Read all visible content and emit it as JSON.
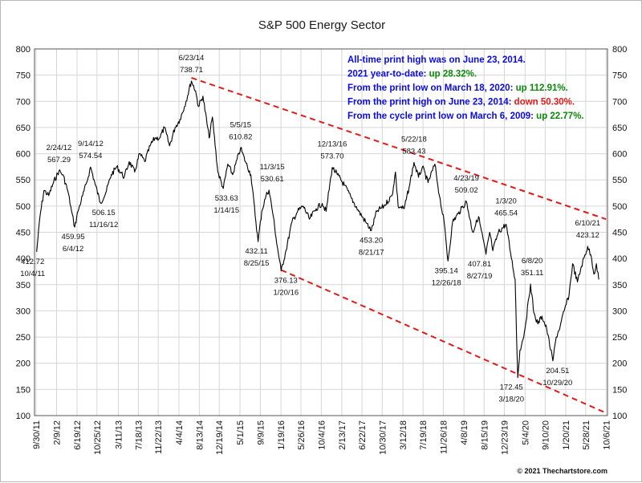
{
  "chart_data": {
    "type": "line",
    "title": "S&P 500 Energy Sector",
    "ylim": [
      100,
      800
    ],
    "yticks": [
      100,
      150,
      200,
      250,
      300,
      350,
      400,
      450,
      500,
      550,
      600,
      650,
      700,
      750,
      800
    ],
    "xdomain": [
      "2011-09-20",
      "2021-10-15"
    ],
    "xticks": [
      "9/30/11",
      "2/9/12",
      "6/19/12",
      "10/25/12",
      "3/11/13",
      "7/18/13",
      "11/22/13",
      "4/4/14",
      "8/13/14",
      "12/19/14",
      "5/1/15",
      "9/9/15",
      "1/19/16",
      "5/26/16",
      "10/4/16",
      "2/13/17",
      "6/22/17",
      "10/30/17",
      "3/12/18",
      "7/19/18",
      "11/26/18",
      "4/8/19",
      "8/15/19",
      "12/23/19",
      "5/4/20",
      "9/10/20",
      "1/20/21",
      "5/28/21",
      "10/6/21"
    ],
    "grid": true,
    "series": [
      {
        "color": "#000000",
        "points": [
          [
            "2011-10-04",
            412.72
          ],
          [
            "2011-10-25",
            480
          ],
          [
            "2011-11-20",
            530
          ],
          [
            "2011-12-20",
            520
          ],
          [
            "2012-01-20",
            545
          ],
          [
            "2012-02-24",
            567.29
          ],
          [
            "2012-03-20",
            560
          ],
          [
            "2012-04-20",
            530
          ],
          [
            "2012-05-15",
            490
          ],
          [
            "2012-06-04",
            459.95
          ],
          [
            "2012-06-25",
            490
          ],
          [
            "2012-07-25",
            520
          ],
          [
            "2012-08-20",
            545
          ],
          [
            "2012-09-14",
            574.54
          ],
          [
            "2012-10-15",
            540
          ],
          [
            "2012-11-16",
            506.15
          ],
          [
            "2012-12-20",
            525
          ],
          [
            "2013-01-25",
            560
          ],
          [
            "2013-03-01",
            575
          ],
          [
            "2013-04-18",
            555
          ],
          [
            "2013-05-20",
            585
          ],
          [
            "2013-06-24",
            565
          ],
          [
            "2013-07-25",
            600
          ],
          [
            "2013-08-28",
            585
          ],
          [
            "2013-10-01",
            615
          ],
          [
            "2013-11-01",
            630
          ],
          [
            "2013-12-01",
            630
          ],
          [
            "2014-01-01",
            650
          ],
          [
            "2014-02-03",
            615
          ],
          [
            "2014-03-10",
            650
          ],
          [
            "2014-04-10",
            665
          ],
          [
            "2014-05-10",
            690
          ],
          [
            "2014-06-23",
            738.71
          ],
          [
            "2014-07-20",
            720
          ],
          [
            "2014-08-07",
            690
          ],
          [
            "2014-09-05",
            710
          ],
          [
            "2014-10-15",
            630
          ],
          [
            "2014-11-05",
            670
          ],
          [
            "2014-12-10",
            565
          ],
          [
            "2015-01-14",
            533.63
          ],
          [
            "2015-02-12",
            580
          ],
          [
            "2015-03-15",
            560
          ],
          [
            "2015-05-05",
            610.82
          ],
          [
            "2015-06-05",
            585
          ],
          [
            "2015-07-10",
            560
          ],
          [
            "2015-08-25",
            432.11
          ],
          [
            "2015-09-18",
            490
          ],
          [
            "2015-10-15",
            520
          ],
          [
            "2015-11-03",
            530.61
          ],
          [
            "2015-12-01",
            480
          ],
          [
            "2015-12-18",
            440
          ],
          [
            "2016-01-20",
            376.13
          ],
          [
            "2016-02-20",
            415
          ],
          [
            "2016-03-30",
            470
          ],
          [
            "2016-05-05",
            490
          ],
          [
            "2016-06-10",
            500
          ],
          [
            "2016-07-20",
            475
          ],
          [
            "2016-09-01",
            495
          ],
          [
            "2016-10-10",
            505
          ],
          [
            "2016-11-04",
            490
          ],
          [
            "2016-12-13",
            573.7
          ],
          [
            "2017-01-15",
            560
          ],
          [
            "2017-03-01",
            540
          ],
          [
            "2017-04-15",
            515
          ],
          [
            "2017-06-01",
            490
          ],
          [
            "2017-07-15",
            470
          ],
          [
            "2017-08-21",
            453.2
          ],
          [
            "2017-09-25",
            490
          ],
          [
            "2017-11-10",
            500
          ],
          [
            "2018-01-01",
            520
          ],
          [
            "2018-01-23",
            565
          ],
          [
            "2018-02-09",
            500
          ],
          [
            "2018-03-20",
            495
          ],
          [
            "2018-04-20",
            535
          ],
          [
            "2018-05-22",
            583.43
          ],
          [
            "2018-06-20",
            555
          ],
          [
            "2018-07-15",
            575
          ],
          [
            "2018-08-20",
            545
          ],
          [
            "2018-10-03",
            580
          ],
          [
            "2018-11-01",
            520
          ],
          [
            "2018-12-01",
            470
          ],
          [
            "2018-12-26",
            395.14
          ],
          [
            "2019-01-25",
            470
          ],
          [
            "2019-03-01",
            485
          ],
          [
            "2019-04-23",
            509.02
          ],
          [
            "2019-06-03",
            450
          ],
          [
            "2019-07-10",
            480
          ],
          [
            "2019-08-27",
            407.81
          ],
          [
            "2019-09-20",
            450
          ],
          [
            "2019-10-10",
            415
          ],
          [
            "2019-11-15",
            450
          ],
          [
            "2020-01-03",
            465.54
          ],
          [
            "2020-02-01",
            410
          ],
          [
            "2020-03-01",
            360
          ],
          [
            "2020-03-10",
            255
          ],
          [
            "2020-03-18",
            172.45
          ],
          [
            "2020-04-01",
            225
          ],
          [
            "2020-04-20",
            245
          ],
          [
            "2020-05-10",
            280
          ],
          [
            "2020-06-08",
            351.11
          ],
          [
            "2020-06-30",
            295
          ],
          [
            "2020-07-25",
            275
          ],
          [
            "2020-08-20",
            290
          ],
          [
            "2020-09-20",
            265
          ],
          [
            "2020-10-29",
            204.51
          ],
          [
            "2020-11-20",
            250
          ],
          [
            "2020-12-15",
            270
          ],
          [
            "2021-01-10",
            300
          ],
          [
            "2021-02-10",
            330
          ],
          [
            "2021-03-05",
            390
          ],
          [
            "2021-04-05",
            355
          ],
          [
            "2021-05-01",
            385
          ],
          [
            "2021-06-10",
            423.12
          ],
          [
            "2021-07-05",
            400
          ],
          [
            "2021-07-20",
            370
          ],
          [
            "2021-08-05",
            390
          ],
          [
            "2021-08-20",
            360
          ]
        ]
      }
    ],
    "trendlines": [
      {
        "color": "#e11a1a",
        "style": "dashed",
        "from": [
          "2014-06-23",
          745
        ],
        "to": [
          "2021-10-06",
          475
        ]
      },
      {
        "color": "#e11a1a",
        "style": "dashed",
        "from": [
          "2016-01-20",
          378
        ],
        "to": [
          "2021-10-06",
          105
        ]
      }
    ],
    "annotations": [
      {
        "date": "6/23/14",
        "value": "738.71"
      },
      {
        "date": "2/24/12",
        "value": "567.29"
      },
      {
        "date": "9/14/12",
        "value": "574.54"
      },
      {
        "date": "11/16/12",
        "value": "506.15"
      },
      {
        "date": "6/4/12",
        "value": "459.95"
      },
      {
        "date": "10/4/11",
        "value": "412.72"
      },
      {
        "date": "5/5/15",
        "value": "610.82"
      },
      {
        "date": "1/14/15",
        "value": "533.63"
      },
      {
        "date": "11/3/15",
        "value": "530.61"
      },
      {
        "date": "8/25/15",
        "value": "432.11"
      },
      {
        "date": "1/20/16",
        "value": "376.13"
      },
      {
        "date": "12/13/16",
        "value": "573.70"
      },
      {
        "date": "8/21/17",
        "value": "453.20"
      },
      {
        "date": "5/22/18",
        "value": "583.43"
      },
      {
        "date": "12/26/18",
        "value": "395.14"
      },
      {
        "date": "4/23/19",
        "value": "509.02"
      },
      {
        "date": "8/27/19",
        "value": "407.81"
      },
      {
        "date": "1/3/20",
        "value": "465.54"
      },
      {
        "date": "3/18/20",
        "value": "172.45"
      },
      {
        "date": "6/8/20",
        "value": "351.11"
      },
      {
        "date": "10/29/20",
        "value": "204.51"
      },
      {
        "date": "6/10/21",
        "value": "423.12"
      }
    ],
    "info_lines": [
      [
        {
          "text": "All-time print high was on June 23, 2014.",
          "color": "#0a0ae6"
        }
      ],
      [
        {
          "text": "2021 year-to-date:  ",
          "color": "#0a0ae6"
        },
        {
          "text": "up 28.32%.",
          "color": "#0a8a0a"
        }
      ],
      [
        {
          "text": "From the print low on March 18, 2020:  ",
          "color": "#0a0ae6"
        },
        {
          "text": "up 112.91%.",
          "color": "#0a8a0a"
        }
      ],
      [
        {
          "text": "From the print high on June 23, 2014:  ",
          "color": "#0a0ae6"
        },
        {
          "text": "down 50.30%.",
          "color": "#e11a1a"
        }
      ],
      [
        {
          "text": "From the cycle print low on March 6, 2009:  ",
          "color": "#0a0ae6"
        },
        {
          "text": "up 22.77%.",
          "color": "#0a8a0a"
        }
      ]
    ],
    "footer": "© 2021 Thechartstore.com"
  }
}
